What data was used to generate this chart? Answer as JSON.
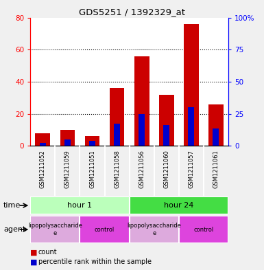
{
  "title": "GDS5251 / 1392329_at",
  "samples": [
    "GSM1211052",
    "GSM1211059",
    "GSM1211051",
    "GSM1211058",
    "GSM1211056",
    "GSM1211060",
    "GSM1211057",
    "GSM1211061"
  ],
  "count_values": [
    8,
    10,
    6,
    36,
    56,
    32,
    76,
    26
  ],
  "percentile_values": [
    2,
    4,
    3,
    14,
    20,
    13,
    24,
    11
  ],
  "left_ylim": [
    0,
    80
  ],
  "right_ylim": [
    0,
    100
  ],
  "left_yticks": [
    0,
    20,
    40,
    60,
    80
  ],
  "right_yticks": [
    0,
    25,
    50,
    75,
    100
  ],
  "right_yticklabels": [
    "0",
    "25",
    "50",
    "75",
    "100%"
  ],
  "count_color": "#cc0000",
  "percentile_color": "#0000cc",
  "bar_width": 0.6,
  "percentile_bar_width": 0.25,
  "grid_color": "black",
  "grid_style": "dotted",
  "sample_bg_color": "#c8c8c8",
  "time_label": "time",
  "agent_label": "agent",
  "time_groups": [
    {
      "label": "hour 1",
      "start": 0,
      "end": 4,
      "color": "#bbffbb"
    },
    {
      "label": "hour 24",
      "start": 4,
      "end": 8,
      "color": "#44dd44"
    }
  ],
  "agent_groups": [
    {
      "label": "lipopolysaccharide\ne",
      "start": 0,
      "end": 2,
      "color": "#ddaadd"
    },
    {
      "label": "control",
      "start": 2,
      "end": 4,
      "color": "#dd44dd"
    },
    {
      "label": "lipopolysaccharide\ne",
      "start": 4,
      "end": 6,
      "color": "#ddaadd"
    },
    {
      "label": "control",
      "start": 6,
      "end": 8,
      "color": "#dd44dd"
    }
  ],
  "legend_count_label": "count",
  "legend_percentile_label": "percentile rank within the sample",
  "background_color": "#f0f0f0",
  "plot_bg_color": "#ffffff",
  "fig_width": 3.85,
  "fig_height": 3.93,
  "dpi": 100
}
